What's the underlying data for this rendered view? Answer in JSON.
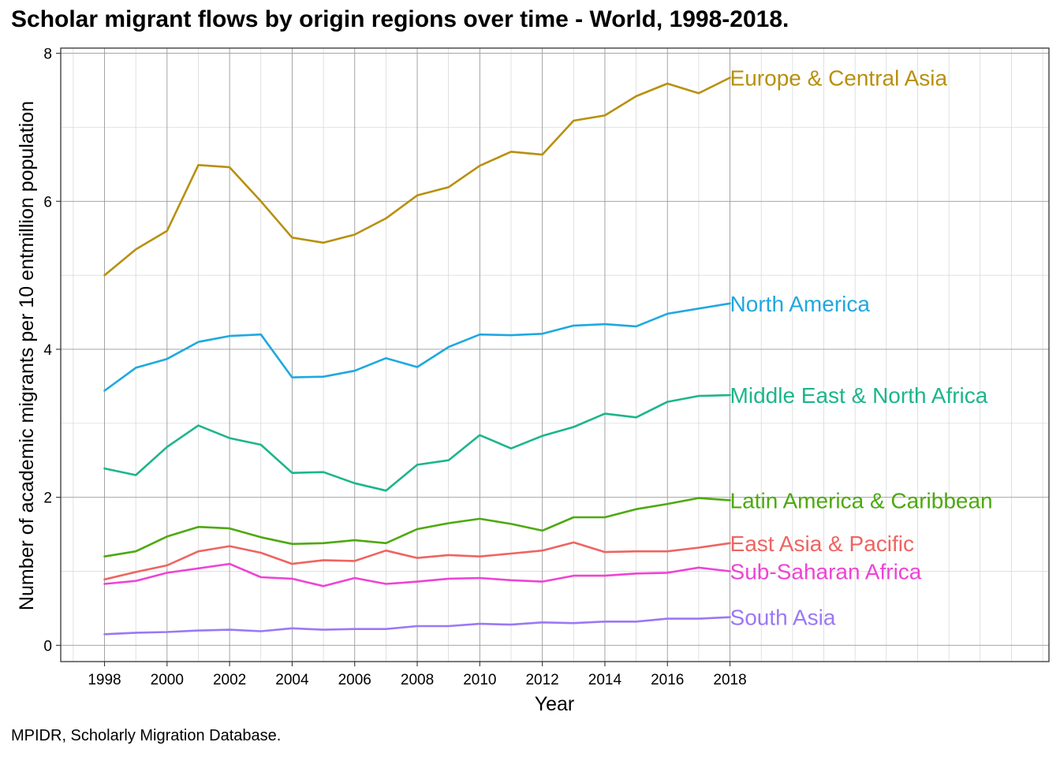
{
  "chart_data": {
    "type": "line",
    "title": "Scholar migrant flows by origin regions over time - World, 1998-2018.",
    "caption": "MPIDR, Scholarly Migration Database.",
    "xlabel": "Year",
    "ylabel": "Number of academic migrants per 10 entmillion population",
    "xlim": [
      1996.6,
      2028.2
    ],
    "ylim": [
      -0.22,
      8.07
    ],
    "x_ticks": [
      1998,
      2000,
      2002,
      2004,
      2006,
      2008,
      2010,
      2012,
      2014,
      2016,
      2018
    ],
    "y_ticks": [
      0,
      2,
      4,
      6,
      8
    ],
    "grid": true,
    "legend": "direct labels at line ends",
    "x": [
      1998,
      1999,
      2000,
      2001,
      2002,
      2003,
      2004,
      2005,
      2006,
      2007,
      2008,
      2009,
      2010,
      2011,
      2012,
      2013,
      2014,
      2015,
      2016,
      2017,
      2018
    ],
    "series": [
      {
        "name": "Europe & Central Asia",
        "color": "#B8900E",
        "values": [
          5.0,
          5.35,
          5.6,
          6.49,
          6.46,
          6.0,
          5.51,
          5.44,
          5.55,
          5.77,
          6.08,
          6.19,
          6.48,
          6.67,
          6.63,
          7.09,
          7.16,
          7.42,
          7.59,
          7.46,
          7.67
        ]
      },
      {
        "name": "North America",
        "color": "#1FA8E0",
        "values": [
          3.44,
          3.75,
          3.87,
          4.1,
          4.18,
          4.2,
          3.62,
          3.63,
          3.71,
          3.88,
          3.76,
          4.03,
          4.2,
          4.19,
          4.21,
          4.32,
          4.34,
          4.31,
          4.48,
          4.55,
          4.62
        ]
      },
      {
        "name": "Middle East & North Africa",
        "color": "#1DB58B",
        "values": [
          2.39,
          2.3,
          2.68,
          2.97,
          2.8,
          2.71,
          2.33,
          2.34,
          2.19,
          2.09,
          2.44,
          2.5,
          2.84,
          2.66,
          2.83,
          2.95,
          3.13,
          3.08,
          3.29,
          3.37,
          3.38
        ]
      },
      {
        "name": "Latin America & Caribbean",
        "color": "#4DA90F",
        "values": [
          1.2,
          1.27,
          1.47,
          1.6,
          1.58,
          1.46,
          1.37,
          1.38,
          1.42,
          1.38,
          1.57,
          1.65,
          1.71,
          1.64,
          1.55,
          1.73,
          1.73,
          1.84,
          1.91,
          1.99,
          1.96
        ]
      },
      {
        "name": "East Asia & Pacific",
        "color": "#EE6461",
        "values": [
          0.89,
          0.99,
          1.08,
          1.27,
          1.34,
          1.25,
          1.1,
          1.15,
          1.14,
          1.28,
          1.18,
          1.22,
          1.2,
          1.24,
          1.28,
          1.39,
          1.26,
          1.27,
          1.27,
          1.32,
          1.38
        ]
      },
      {
        "name": "Sub-Saharan Africa",
        "color": "#EE44D4",
        "values": [
          0.83,
          0.87,
          0.98,
          1.04,
          1.1,
          0.92,
          0.9,
          0.8,
          0.91,
          0.83,
          0.86,
          0.9,
          0.91,
          0.88,
          0.86,
          0.94,
          0.94,
          0.97,
          0.98,
          1.05,
          1.0
        ]
      },
      {
        "name": "South Asia",
        "color": "#9B78F5",
        "values": [
          0.15,
          0.17,
          0.18,
          0.2,
          0.21,
          0.19,
          0.23,
          0.21,
          0.22,
          0.22,
          0.26,
          0.26,
          0.29,
          0.28,
          0.31,
          0.3,
          0.32,
          0.32,
          0.36,
          0.36,
          0.38
        ]
      }
    ]
  }
}
